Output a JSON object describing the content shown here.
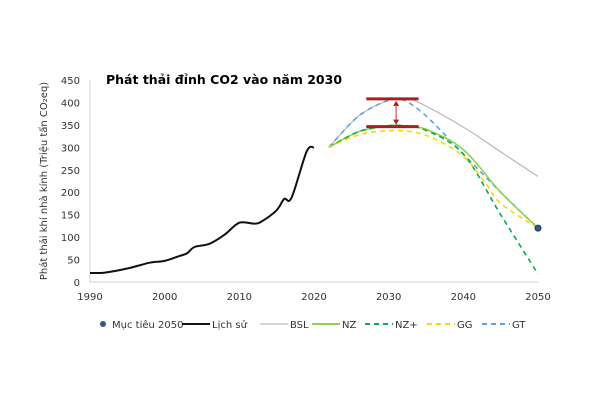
{
  "chart_data": {
    "type": "line",
    "title": "Phát thải đỉnh CO2 vào năm 2030",
    "xlabel": "",
    "ylabel": "Phát thải khí nhà kính (Triệu tấn CO₂eq)",
    "xlim": [
      1990,
      2050
    ],
    "ylim": [
      0,
      450
    ],
    "xticks": [
      1990,
      2000,
      2010,
      2020,
      2030,
      2040,
      2050
    ],
    "yticks": [
      0,
      50,
      100,
      150,
      200,
      250,
      300,
      350,
      400,
      450
    ],
    "grid": false,
    "legend_position": "bottom",
    "series": [
      {
        "name": "Mục tiêu 2050",
        "style": "marker",
        "color": "#2f5597",
        "points": [
          [
            2050,
            120
          ]
        ]
      },
      {
        "name": "Lịch sử",
        "style": "solid",
        "color": "#111111",
        "points": [
          [
            1990,
            20
          ],
          [
            1992,
            21
          ],
          [
            1995,
            30
          ],
          [
            1998,
            43
          ],
          [
            2000,
            47
          ],
          [
            2002,
            58
          ],
          [
            2003,
            64
          ],
          [
            2004,
            78
          ],
          [
            2006,
            85
          ],
          [
            2008,
            105
          ],
          [
            2010,
            132
          ],
          [
            2012,
            130
          ],
          [
            2013,
            135
          ],
          [
            2015,
            160
          ],
          [
            2016,
            185
          ],
          [
            2017,
            188
          ],
          [
            2019,
            290
          ],
          [
            2020,
            300
          ]
        ]
      },
      {
        "name": "BSL",
        "style": "solid",
        "color": "#aaaaaa",
        "points": [
          [
            2022,
            300
          ],
          [
            2026,
            370
          ],
          [
            2030,
            405
          ],
          [
            2032,
            408
          ],
          [
            2034,
            400
          ],
          [
            2040,
            345
          ],
          [
            2045,
            290
          ],
          [
            2050,
            235
          ]
        ]
      },
      {
        "name": "NZ",
        "style": "solid",
        "color": "#92d050",
        "points": [
          [
            2022,
            300
          ],
          [
            2026,
            335
          ],
          [
            2030,
            348
          ],
          [
            2032,
            348
          ],
          [
            2035,
            340
          ],
          [
            2040,
            295
          ],
          [
            2045,
            200
          ],
          [
            2050,
            120
          ]
        ]
      },
      {
        "name": "NZ+",
        "style": "dashed",
        "color": "#00b050",
        "points": [
          [
            2022,
            300
          ],
          [
            2026,
            335
          ],
          [
            2030,
            348
          ],
          [
            2032,
            348
          ],
          [
            2035,
            338
          ],
          [
            2040,
            285
          ],
          [
            2045,
            150
          ],
          [
            2050,
            18
          ]
        ]
      },
      {
        "name": "GG",
        "style": "dashed",
        "color": "#ffd700",
        "points": [
          [
            2022,
            300
          ],
          [
            2026,
            328
          ],
          [
            2030,
            337
          ],
          [
            2033,
            335
          ],
          [
            2036,
            320
          ],
          [
            2040,
            280
          ],
          [
            2043,
            220
          ],
          [
            2045,
            175
          ],
          [
            2050,
            120
          ]
        ]
      },
      {
        "name": "GT",
        "style": "dashed",
        "color": "#5ba3e6",
        "points": [
          [
            2022,
            300
          ],
          [
            2026,
            370
          ],
          [
            2030,
            405
          ],
          [
            2032,
            405
          ],
          [
            2035,
            370
          ],
          [
            2040,
            285
          ],
          [
            2045,
            200
          ],
          [
            2050,
            120
          ]
        ]
      }
    ],
    "annotations": [
      {
        "type": "peak-bar",
        "y": 408,
        "x_range": [
          2027,
          2034
        ],
        "color": "#b01c1c"
      },
      {
        "type": "peak-bar",
        "y": 346,
        "x_range": [
          2027,
          2034
        ],
        "color": "#b01c1c"
      },
      {
        "type": "double-arrow",
        "x": 2031,
        "y_range": [
          346,
          408
        ],
        "color": "#e07070"
      }
    ]
  }
}
